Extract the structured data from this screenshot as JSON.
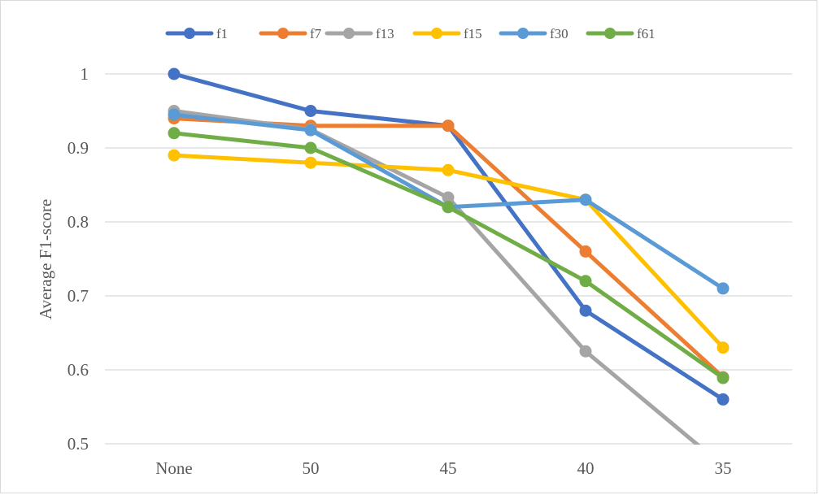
{
  "chart_data": {
    "type": "line",
    "title": "",
    "xlabel": "",
    "ylabel": "Average F1-score",
    "categories": [
      "None",
      "50",
      "45",
      "40",
      "35"
    ],
    "ylim": [
      0.5,
      1.0
    ],
    "yticks": [
      0.5,
      0.6,
      0.7,
      0.8,
      0.9,
      1
    ],
    "ytick_labels": [
      "0.5",
      "0.6",
      "0.7",
      "0.8",
      "0.9",
      "1"
    ],
    "grid": true,
    "legend_position": "top-center",
    "series": [
      {
        "name": "f1",
        "color": "#4472C4",
        "values": [
          1.0,
          0.95,
          0.93,
          0.68,
          0.56
        ]
      },
      {
        "name": "f7",
        "color": "#ED7D31",
        "values": [
          0.94,
          0.93,
          0.93,
          0.76,
          0.59
        ]
      },
      {
        "name": "f13",
        "color": "#A5A5A5",
        "values": [
          0.95,
          0.925,
          0.833,
          0.625,
          0.47
        ]
      },
      {
        "name": "f15",
        "color": "#FFC000",
        "values": [
          0.89,
          0.88,
          0.87,
          0.83,
          0.63
        ]
      },
      {
        "name": "f30",
        "color": "#5B9BD5",
        "values": [
          0.945,
          0.924,
          0.82,
          0.83,
          0.71
        ]
      },
      {
        "name": "f61",
        "color": "#70AD47",
        "values": [
          0.92,
          0.9,
          0.82,
          0.72,
          0.589
        ]
      }
    ]
  }
}
